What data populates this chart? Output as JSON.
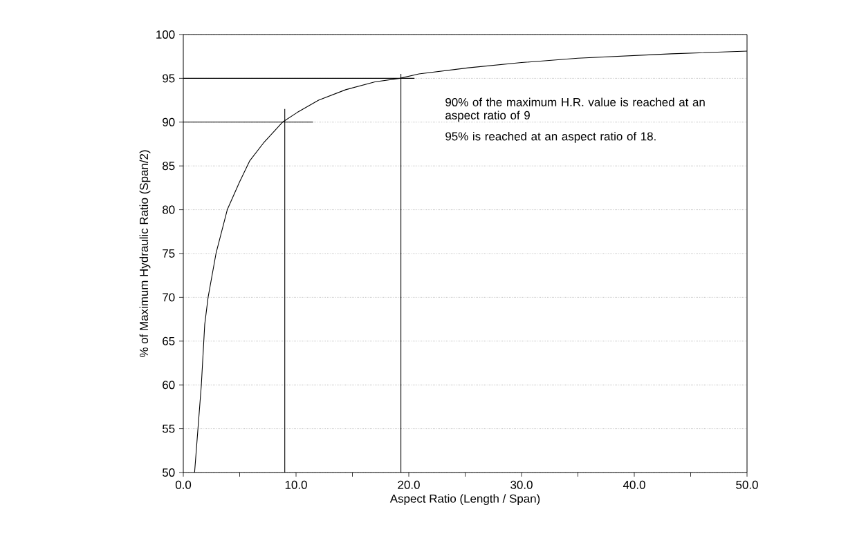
{
  "chart_data": {
    "type": "line",
    "xlabel": "Aspect Ratio (Length / Span)",
    "ylabel": "% of Maximum Hydraulic Ratio (Span/2)",
    "series": [
      {
        "color": "#000000",
        "x": [
          1.0,
          1.3,
          1.6,
          1.9,
          2.2,
          2.9,
          3.9,
          5.0,
          5.9,
          7.1,
          8.8,
          10.1,
          12.0,
          14.4,
          17.0,
          19.2,
          20.9,
          25.3,
          30.0,
          35.0,
          43.3,
          50.0
        ],
        "values": [
          50,
          55,
          60,
          66.9,
          70,
          75,
          80,
          83.2,
          85.6,
          87.6,
          90,
          91.1,
          92.5,
          93.7,
          94.6,
          95,
          95.5,
          96.2,
          96.8,
          97.3,
          97.8,
          98.1
        ]
      },
      {
        "color": "#000000",
        "x": [
          0,
          11.5
        ],
        "values": [
          90,
          90
        ]
      },
      {
        "color": "#000000",
        "x": [
          0,
          20.5
        ],
        "values": [
          95,
          95
        ]
      },
      {
        "color": "#000000",
        "x": [
          9.0,
          9.0
        ],
        "values": [
          50,
          91.5
        ]
      },
      {
        "color": "#000000",
        "x": [
          19.3,
          19.3
        ],
        "values": [
          50,
          95.5
        ]
      }
    ],
    "xlim": [
      0,
      50
    ],
    "ylim": [
      50,
      100
    ],
    "xticks": [
      {
        "value": 0,
        "label": "0.0"
      },
      {
        "value": 5,
        "label": null
      },
      {
        "value": 10,
        "label": "10.0"
      },
      {
        "value": 15,
        "label": null
      },
      {
        "value": 20,
        "label": "20.0"
      },
      {
        "value": 25,
        "label": null
      },
      {
        "value": 30,
        "label": "30.0"
      },
      {
        "value": 35,
        "label": null
      },
      {
        "value": 40,
        "label": "40.0"
      },
      {
        "value": 45,
        "label": null
      },
      {
        "value": 50,
        "label": "50.0"
      }
    ],
    "yticks": [
      50,
      55,
      60,
      65,
      70,
      75,
      80,
      85,
      90,
      95,
      100
    ],
    "grid": "y",
    "marker": "none",
    "line_style": "solid",
    "annotations": [
      "90% of  the maximum H.R. value is reached at an aspect ratio of 9",
      "95% is reached at an aspect ratio of 18."
    ]
  }
}
